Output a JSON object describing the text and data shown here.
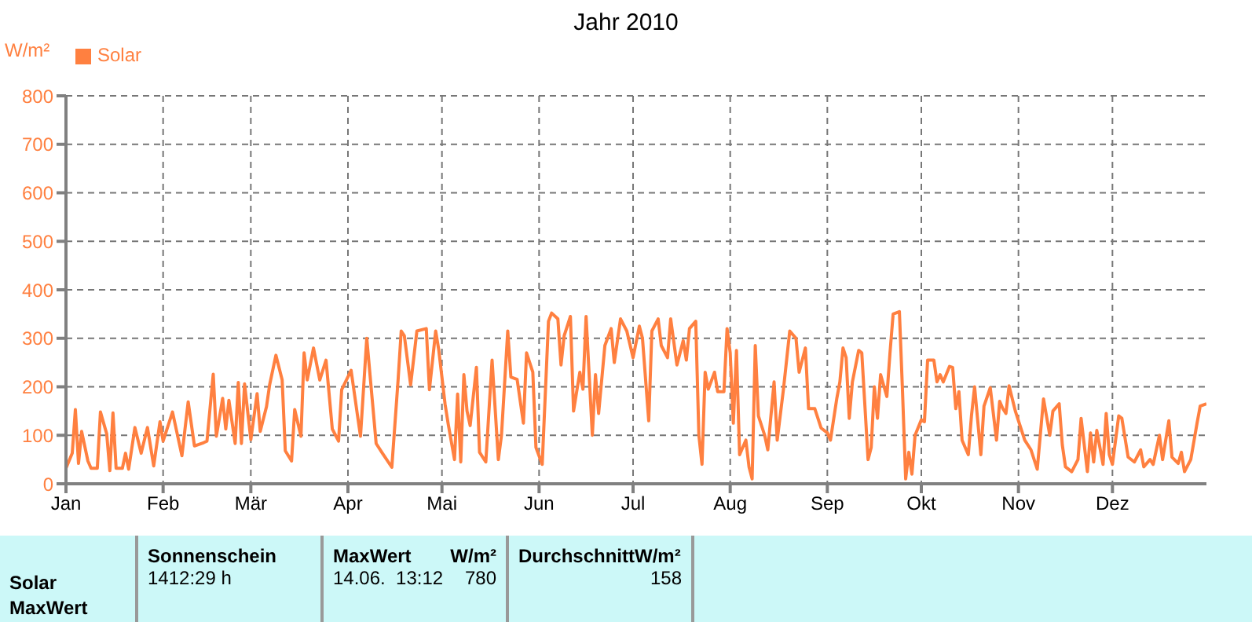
{
  "chart_data": {
    "type": "line",
    "title": "Jahr 2010",
    "ylabel": "W/m²",
    "xlim": [
      "2010-01-01",
      "2010-12-31"
    ],
    "xticks": [
      {
        "value": "2010-01-01",
        "label": "Jan"
      },
      {
        "value": "2010-02-01",
        "label": "Feb"
      },
      {
        "value": "2010-03-01",
        "label": "Mär"
      },
      {
        "value": "2010-04-01",
        "label": "Apr"
      },
      {
        "value": "2010-05-01",
        "label": "Mai"
      },
      {
        "value": "2010-06-01",
        "label": "Jun"
      },
      {
        "value": "2010-07-01",
        "label": "Jul"
      },
      {
        "value": "2010-08-01",
        "label": "Aug"
      },
      {
        "value": "2010-09-01",
        "label": "Sep"
      },
      {
        "value": "2010-10-01",
        "label": "Okt"
      },
      {
        "value": "2010-11-01",
        "label": "Nov"
      },
      {
        "value": "2010-12-01",
        "label": "Dez"
      }
    ],
    "ylim": [
      0,
      800
    ],
    "yticks": [
      0,
      100,
      200,
      300,
      400,
      500,
      600,
      700,
      800
    ],
    "grid": true,
    "legend": "top left",
    "marker": "none",
    "line_style": "solid",
    "series": [
      {
        "name": "Solar",
        "color": "#ff8040",
        "x": [
          "2010-01-01",
          "2010-01-03",
          "2010-01-04",
          "2010-01-05",
          "2010-01-06",
          "2010-01-08",
          "2010-01-09",
          "2010-01-11",
          "2010-01-12",
          "2010-01-14",
          "2010-01-15",
          "2010-01-16",
          "2010-01-17",
          "2010-01-19",
          "2010-01-20",
          "2010-01-21",
          "2010-01-23",
          "2010-01-25",
          "2010-01-27",
          "2010-01-29",
          "2010-01-31",
          "2010-02-01",
          "2010-02-04",
          "2010-02-07",
          "2010-02-09",
          "2010-02-11",
          "2010-02-14",
          "2010-02-15",
          "2010-02-17",
          "2010-02-18",
          "2010-02-20",
          "2010-02-21",
          "2010-02-22",
          "2010-02-24",
          "2010-02-25",
          "2010-02-26",
          "2010-02-27",
          "2010-03-01",
          "2010-03-03",
          "2010-03-04",
          "2010-03-06",
          "2010-03-07",
          "2010-03-09",
          "2010-03-11",
          "2010-03-12",
          "2010-03-14",
          "2010-03-15",
          "2010-03-17",
          "2010-03-18",
          "2010-03-19",
          "2010-03-21",
          "2010-03-23",
          "2010-03-25",
          "2010-03-27",
          "2010-03-29",
          "2010-03-30",
          "2010-04-02",
          "2010-04-04",
          "2010-04-05",
          "2010-04-07",
          "2010-04-10",
          "2010-04-12",
          "2010-04-15",
          "2010-04-17",
          "2010-04-18",
          "2010-04-19",
          "2010-04-21",
          "2010-04-23",
          "2010-04-26",
          "2010-04-27",
          "2010-04-29",
          "2010-04-30",
          "2010-05-02",
          "2010-05-03",
          "2010-05-05",
          "2010-05-06",
          "2010-05-07",
          "2010-05-08",
          "2010-05-09",
          "2010-05-10",
          "2010-05-12",
          "2010-05-13",
          "2010-05-15",
          "2010-05-17",
          "2010-05-19",
          "2010-05-20",
          "2010-05-22",
          "2010-05-23",
          "2010-05-25",
          "2010-05-27",
          "2010-05-28",
          "2010-05-30",
          "2010-05-31",
          "2010-06-02",
          "2010-06-04",
          "2010-06-05",
          "2010-06-07",
          "2010-06-08",
          "2010-06-09",
          "2010-06-11",
          "2010-06-12",
          "2010-06-14",
          "2010-06-15",
          "2010-06-16",
          "2010-06-18",
          "2010-06-19",
          "2010-06-20",
          "2010-06-22",
          "2010-06-24",
          "2010-06-25",
          "2010-06-27",
          "2010-06-29",
          "2010-07-01",
          "2010-07-03",
          "2010-07-04",
          "2010-07-06",
          "2010-07-07",
          "2010-07-09",
          "2010-07-10",
          "2010-07-12",
          "2010-07-13",
          "2010-07-15",
          "2010-07-17",
          "2010-07-18",
          "2010-07-19",
          "2010-07-21",
          "2010-07-22",
          "2010-07-23",
          "2010-07-24",
          "2010-07-25",
          "2010-07-27",
          "2010-07-28",
          "2010-07-30",
          "2010-07-31",
          "2010-08-01",
          "2010-08-02",
          "2010-08-03",
          "2010-08-04",
          "2010-08-06",
          "2010-08-07",
          "2010-08-08",
          "2010-08-09",
          "2010-08-10",
          "2010-08-12",
          "2010-08-13",
          "2010-08-15",
          "2010-08-16",
          "2010-08-18",
          "2010-08-20",
          "2010-08-22",
          "2010-08-23",
          "2010-08-25",
          "2010-08-26",
          "2010-08-28",
          "2010-08-30",
          "2010-09-01",
          "2010-09-02",
          "2010-09-04",
          "2010-09-05",
          "2010-09-06",
          "2010-09-07",
          "2010-09-08",
          "2010-09-09",
          "2010-09-11",
          "2010-09-12",
          "2010-09-14",
          "2010-09-15",
          "2010-09-16",
          "2010-09-17",
          "2010-09-18",
          "2010-09-20",
          "2010-09-21",
          "2010-09-22",
          "2010-09-24",
          "2010-09-25",
          "2010-09-26",
          "2010-09-27",
          "2010-09-28",
          "2010-09-29",
          "2010-10-01",
          "2010-10-02",
          "2010-10-03",
          "2010-10-05",
          "2010-10-06",
          "2010-10-07",
          "2010-10-08",
          "2010-10-10",
          "2010-10-11",
          "2010-10-12",
          "2010-10-13",
          "2010-10-14",
          "2010-10-16",
          "2010-10-17",
          "2010-10-18",
          "2010-10-20",
          "2010-10-21",
          "2010-10-23",
          "2010-10-25",
          "2010-10-26",
          "2010-10-27",
          "2010-10-28",
          "2010-10-29",
          "2010-10-31",
          "2010-11-03",
          "2010-11-05",
          "2010-11-07",
          "2010-11-09",
          "2010-11-11",
          "2010-11-12",
          "2010-11-14",
          "2010-11-15",
          "2010-11-16",
          "2010-11-18",
          "2010-11-20",
          "2010-11-21",
          "2010-11-23",
          "2010-11-24",
          "2010-11-25",
          "2010-11-26",
          "2010-11-28",
          "2010-11-29",
          "2010-11-30",
          "2010-12-01",
          "2010-12-03",
          "2010-12-04",
          "2010-12-06",
          "2010-12-08",
          "2010-12-10",
          "2010-12-11",
          "2010-12-13",
          "2010-12-14",
          "2010-12-16",
          "2010-12-17",
          "2010-12-19",
          "2010-12-20",
          "2010-12-22",
          "2010-12-23",
          "2010-12-24",
          "2010-12-26",
          "2010-12-28",
          "2010-12-29",
          "2010-12-31"
        ],
        "values": [
          32,
          63,
          153,
          42,
          108,
          47,
          32,
          32,
          148,
          103,
          27,
          146,
          32,
          32,
          63,
          30,
          116,
          63,
          116,
          37,
          128,
          88,
          148,
          58,
          169,
          78,
          85,
          88,
          226,
          98,
          176,
          113,
          172,
          83,
          209,
          83,
          206,
          91,
          186,
          108,
          159,
          204,
          265,
          214,
          68,
          47,
          153,
          98,
          270,
          214,
          280,
          214,
          255,
          113,
          88,
          194,
          234,
          143,
          98,
          300,
          83,
          63,
          34,
          214,
          315,
          305,
          204,
          315,
          320,
          194,
          315,
          275,
          164,
          123,
          50,
          185,
          45,
          225,
          150,
          120,
          240,
          65,
          45,
          255,
          50,
          100,
          315,
          220,
          215,
          125,
          270,
          230,
          75,
          40,
          335,
          352,
          340,
          245,
          305,
          345,
          150,
          230,
          195,
          345,
          100,
          225,
          145,
          285,
          320,
          250,
          340,
          315,
          260,
          325,
          300,
          130,
          315,
          340,
          285,
          260,
          340,
          245,
          295,
          255,
          320,
          335,
          100,
          40,
          230,
          195,
          230,
          190,
          190,
          320,
          270,
          125,
          275,
          60,
          90,
          35,
          10,
          285,
          140,
          100,
          70,
          210,
          90,
          195,
          315,
          300,
          230,
          280,
          155,
          155,
          115,
          105,
          90,
          175,
          210,
          280,
          260,
          135,
          210,
          275,
          270,
          50,
          75,
          200,
          135,
          225,
          180,
          270,
          350,
          355,
          190,
          10,
          65,
          20,
          100,
          132,
          128,
          255,
          255,
          210,
          225,
          210,
          242,
          240,
          155,
          190,
          90,
          60,
          140,
          200,
          60,
          160,
          198,
          90,
          170,
          155,
          145,
          202,
          150,
          90,
          70,
          30,
          175,
          100,
          150,
          165,
          80,
          35,
          25,
          50,
          135,
          25,
          105,
          45,
          110,
          40,
          145,
          60,
          40,
          140,
          135,
          55,
          45,
          70,
          35,
          50,
          40,
          100,
          50,
          130,
          55,
          42,
          65,
          25,
          50,
          125,
          160,
          165
        ]
      }
    ],
    "annotations": [
      "Solar",
      "MaxWert",
      "Sonnenschein",
      "1412:29 h",
      "MaxWert",
      "W/m²",
      "14.06.  13:12",
      "780",
      "DurchschnittW/m²",
      "158"
    ]
  }
}
